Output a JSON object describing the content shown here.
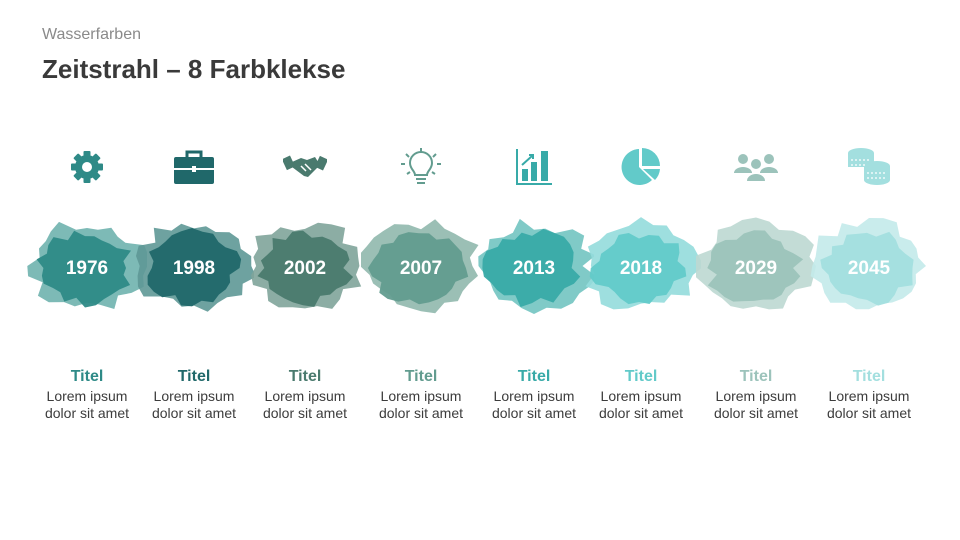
{
  "header": {
    "subtitle": "Wasserfarben",
    "title": "Zeitstrahl – 8 Farbklekse"
  },
  "items": [
    {
      "year": "1976",
      "title": "Titel",
      "line1": "Lorem ipsum",
      "line2": "dolor sit amet",
      "icon": "gear-icon",
      "color": "#2e8a87",
      "light": "#6fb2ae"
    },
    {
      "year": "1998",
      "title": "Titel",
      "line1": "Lorem ipsum",
      "line2": "dolor sit amet",
      "icon": "briefcase-icon",
      "color": "#20686a",
      "light": "#5e9896"
    },
    {
      "year": "2002",
      "title": "Titel",
      "line1": "Lorem ipsum",
      "line2": "dolor sit amet",
      "icon": "handshake-icon",
      "color": "#4a7a6e",
      "light": "#7fa49a"
    },
    {
      "year": "2007",
      "title": "Titel",
      "line1": "Lorem ipsum",
      "line2": "dolor sit amet",
      "icon": "lightbulb-icon",
      "color": "#629c8f",
      "light": "#90b8ad"
    },
    {
      "year": "2013",
      "title": "Titel",
      "line1": "Lorem ipsum",
      "line2": "dolor sit amet",
      "icon": "bar-chart-icon",
      "color": "#38aaa8",
      "light": "#72c4c1"
    },
    {
      "year": "2018",
      "title": "Titel",
      "line1": "Lorem ipsum",
      "line2": "dolor sit amet",
      "icon": "pie-chart-icon",
      "color": "#62cac9",
      "light": "#93dcdb"
    },
    {
      "year": "2029",
      "title": "Titel",
      "line1": "Lorem ipsum",
      "line2": "dolor sit amet",
      "icon": "people-icon",
      "color": "#9cc3bb",
      "light": "#bcd8d2"
    },
    {
      "year": "2045",
      "title": "Titel",
      "line1": "Lorem ipsum",
      "line2": "dolor sit amet",
      "icon": "coins-icon",
      "color": "#a3dfdf",
      "light": "#c3eaea"
    }
  ]
}
